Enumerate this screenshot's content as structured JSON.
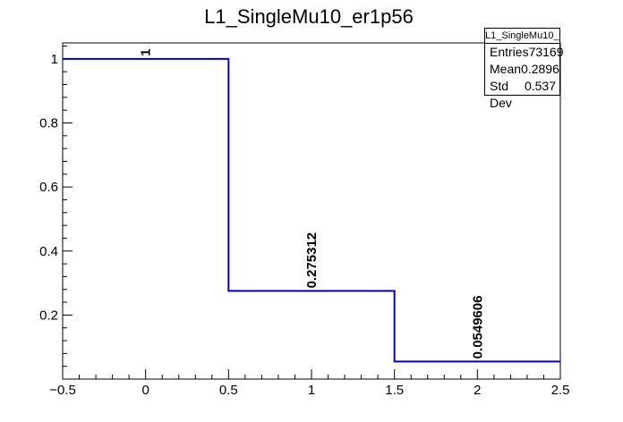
{
  "chart_data": {
    "type": "bar",
    "title": "L1_SingleMu10_er1p56",
    "xlabel": "",
    "ylabel": "",
    "bin_edges": [
      -0.5,
      0.5,
      1.5,
      2.5
    ],
    "values": [
      1,
      0.275312,
      0.0549606
    ],
    "data_labels": [
      "1",
      "0.275312",
      "0.0549606"
    ],
    "xlim": [
      -0.5,
      2.5
    ],
    "ylim": [
      0,
      1.05
    ],
    "x_ticks": [
      -0.5,
      0,
      0.5,
      1,
      1.5,
      2,
      2.5
    ],
    "x_tick_labels": [
      "−0.5",
      "0",
      "0.5",
      "1",
      "1.5",
      "2",
      "2.5"
    ],
    "y_ticks": [
      0.2,
      0.4,
      0.6,
      0.8,
      1
    ],
    "y_tick_labels": [
      "0.2",
      "0.4",
      "0.6",
      "0.8",
      "1"
    ],
    "line_color": "#0000cc",
    "grid": false,
    "legend": "none"
  },
  "stats": {
    "title": "L1_SingleMu10_er1p56",
    "rows": [
      {
        "label": "Entries",
        "value": "73169"
      },
      {
        "label": "Mean",
        "value": "0.2896"
      },
      {
        "label": "Std Dev",
        "value": "0.537"
      }
    ]
  }
}
